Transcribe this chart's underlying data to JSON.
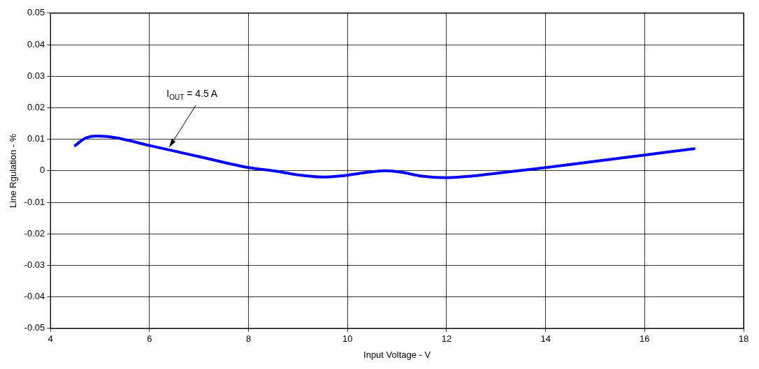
{
  "chart_data": {
    "type": "line",
    "xlabel": "Input Voltage - V",
    "ylabel": "Line Rgulation - %",
    "xlim": [
      4,
      18
    ],
    "xticks": [
      4,
      6,
      8,
      10,
      12,
      14,
      16,
      18
    ],
    "ylim": [
      -0.05,
      0.05
    ],
    "yticks": [
      -0.05,
      -0.04,
      -0.03,
      -0.02,
      -0.01,
      0,
      0.01,
      0.02,
      0.03,
      0.04,
      0.05
    ],
    "grid": true,
    "legend": false,
    "marker": "none",
    "line_style": "solid",
    "series": [
      {
        "color": "#0000ff",
        "x": [
          4.5,
          4.7,
          4.95,
          5.3,
          6,
          7,
          8,
          8.5,
          9,
          9.5,
          10,
          10.4,
          10.75,
          11.1,
          11.5,
          12,
          12.5,
          13,
          14,
          15,
          16,
          17
        ],
        "values": [
          0.008,
          0.0103,
          0.011,
          0.0105,
          0.008,
          0.0045,
          0.001,
          0,
          -0.0013,
          -0.002,
          -0.0014,
          -0.0005,
          0,
          -0.0005,
          -0.0017,
          -0.0022,
          -0.0017,
          -0.0008,
          0.001,
          0.003,
          0.005,
          0.007
        ]
      }
    ],
    "annotations": [
      {
        "text": "I$_{OUT}$ = 4.5 A",
        "x": 6.4,
        "y": 0.0075
      }
    ]
  }
}
